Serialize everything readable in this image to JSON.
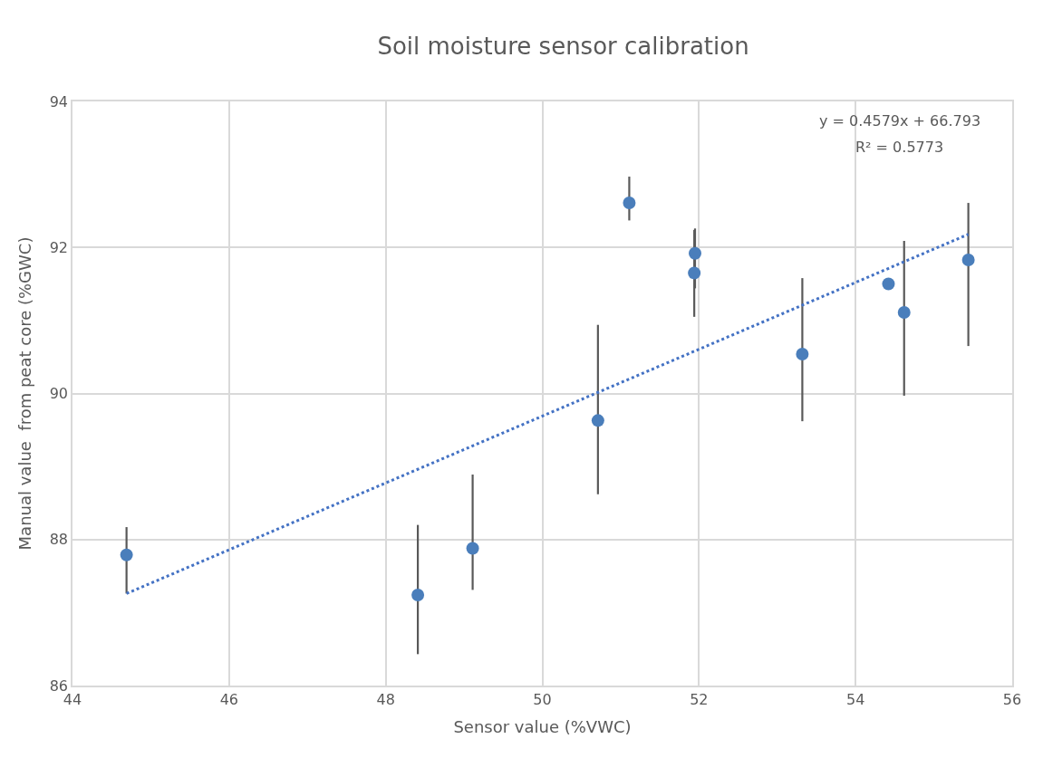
{
  "chart_data": {
    "type": "scatter",
    "title": "Soil moisture sensor calibration",
    "xlabel": "Sensor value (%VWC)",
    "ylabel": "Manual value  from peat core (%GWC)",
    "annotations": [
      "y = 0.4579x + 66.793",
      "R² = 0.5773"
    ],
    "series": [
      {
        "color": "#4a7ebb",
        "marker": "circle",
        "x": [
          44.69,
          48.41,
          49.11,
          50.71,
          51.11,
          51.95,
          51.94,
          53.32,
          54.42,
          54.62,
          55.44
        ],
        "values": [
          87.79,
          87.24,
          87.88,
          89.63,
          92.61,
          91.92,
          91.65,
          90.54,
          91.5,
          91.11,
          91.83
        ],
        "errors": [
          [
            87.26,
            88.17
          ],
          [
            86.43,
            88.2
          ],
          [
            87.31,
            88.89
          ],
          [
            88.62,
            90.94
          ],
          [
            92.37,
            92.97
          ],
          [
            91.44,
            92.26
          ],
          [
            91.05,
            92.24
          ],
          [
            89.62,
            91.58
          ],
          null,
          [
            89.97,
            92.09
          ],
          [
            90.65,
            92.61
          ]
        ]
      },
      {
        "type": "line",
        "color": "#4472c4",
        "line_style": "dotted",
        "marker": "none",
        "x": [
          44.69,
          55.44
        ],
        "values": [
          87.26,
          92.18
        ]
      }
    ],
    "xlim": [
      44,
      56
    ],
    "xticks": [
      44,
      46,
      48,
      50,
      52,
      54,
      56
    ],
    "ylim": [
      86,
      94
    ],
    "yticks": [
      86,
      88,
      90,
      92,
      94
    ],
    "grid": true
  }
}
